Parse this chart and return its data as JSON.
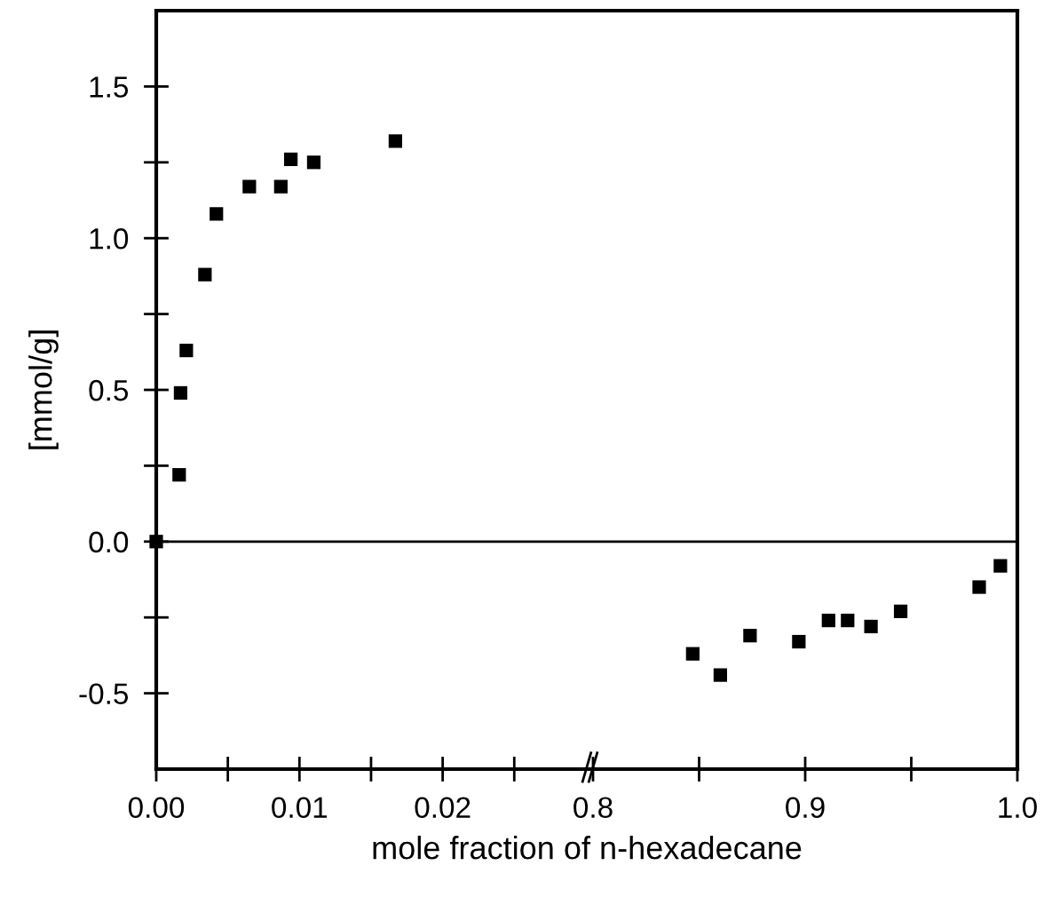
{
  "chart_data": [
    {
      "type": "scatter",
      "xlabel": "mole fraction of n-hexadecane",
      "ylabel": "[mmol/g]",
      "x": [
        0,
        0.0016,
        0.0017,
        0.0021,
        0.0034,
        0.0042,
        0.0065,
        0.0087,
        0.0094,
        0.011,
        0.0167
      ],
      "values": [
        0,
        0.22,
        0.49,
        0.63,
        0.88,
        1.08,
        1.17,
        1.17,
        1.26,
        1.25,
        1.32
      ],
      "color": "#000000",
      "marker": "square",
      "xlim": [
        0,
        0.0305
      ],
      "xticks": [
        {
          "value": 0,
          "label": "0.00"
        },
        {
          "value": 0.005,
          "label": null
        },
        0.01,
        {
          "value": 0.015,
          "label": null
        },
        0.02,
        {
          "value": 0.025,
          "label": null
        }
      ],
      "ylim": [
        -0.75,
        1.75
      ],
      "yticks": [
        -0.5,
        {
          "value": -0.25,
          "label": null
        },
        {
          "value": 0,
          "label": "0.0"
        },
        {
          "value": 0.25,
          "label": null
        },
        0.5,
        {
          "value": 0.75,
          "label": null
        },
        {
          "value": 1,
          "label": "1.0"
        },
        {
          "value": 1.25,
          "label": null
        },
        1.5
      ],
      "ref_lines": [
        {
          "axis": "y",
          "value": 0,
          "color": "#000000"
        }
      ],
      "grid": false
    },
    {
      "type": "scatter",
      "x": [
        0.847,
        0.86,
        0.874,
        0.897,
        0.911,
        0.92,
        0.931,
        0.945,
        0.982,
        0.992
      ],
      "values": [
        -0.37,
        -0.44,
        -0.31,
        -0.33,
        -0.26,
        -0.26,
        -0.28,
        -0.23,
        -0.15,
        -0.08
      ],
      "color": "#000000",
      "marker": "square",
      "xlim": [
        0.8,
        1.0
      ],
      "xticks": [
        {
          "value": 0.8,
          "label": "0.8"
        },
        {
          "value": 0.85,
          "label": null
        },
        {
          "value": 0.9,
          "label": "0.9"
        },
        {
          "value": 0.95,
          "label": null
        },
        {
          "value": 1.0,
          "label": "1.0"
        }
      ],
      "ylim": [
        -0.75,
        1.75
      ],
      "tick_labels": "x",
      "ref_lines": [
        {
          "axis": "y",
          "value": 0,
          "color": "#000000"
        }
      ],
      "grid": false
    }
  ]
}
